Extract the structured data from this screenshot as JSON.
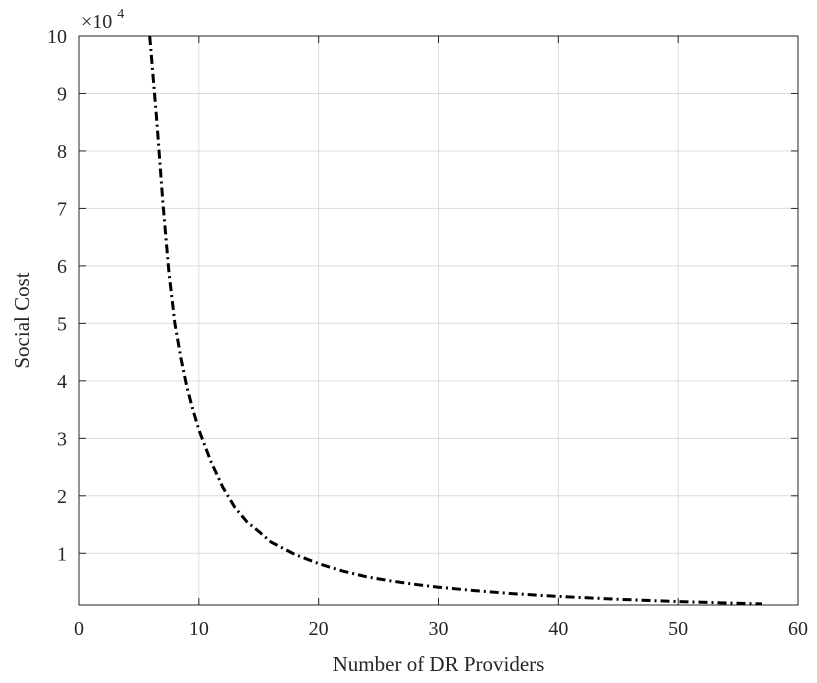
{
  "chart_data": {
    "type": "line",
    "title": "",
    "xlabel": "Number of DR Providers",
    "ylabel": "Social Cost",
    "y_exponent_base": "×10",
    "y_exponent_power": "4",
    "xlim": [
      0,
      60
    ],
    "ylim": [
      1000,
      100000
    ],
    "x_ticks": [
      0,
      10,
      20,
      30,
      40,
      50,
      60
    ],
    "x_tick_labels": [
      "0",
      "10",
      "20",
      "30",
      "40",
      "50",
      "60"
    ],
    "y_ticks": [
      10000,
      20000,
      30000,
      40000,
      50000,
      60000,
      70000,
      80000,
      90000,
      100000
    ],
    "y_tick_labels": [
      "1",
      "2",
      "3",
      "4",
      "5",
      "6",
      "7",
      "8",
      "9",
      "10"
    ],
    "grid": true,
    "series": [
      {
        "line_style": "dash-dot",
        "color": "#000000",
        "x": [
          5.9,
          6.5,
          7.0,
          7.5,
          8.0,
          8.5,
          9.0,
          9.5,
          10.0,
          11.0,
          12.0,
          13.0,
          14.0,
          15.0,
          16.0,
          18.0,
          20.0,
          22.0,
          24.0,
          26.0,
          28.0,
          30.0,
          33.0,
          36.0,
          40.0,
          45.0,
          50.0,
          55.0,
          57.0
        ],
        "y": [
          100000,
          85000,
          71000,
          59000,
          50000,
          44000,
          39000,
          35000,
          31500,
          26000,
          21500,
          18000,
          15500,
          13800,
          12000,
          9800,
          8200,
          6900,
          5900,
          5200,
          4600,
          4100,
          3500,
          3000,
          2500,
          2000,
          1600,
          1300,
          1200
        ]
      }
    ]
  }
}
